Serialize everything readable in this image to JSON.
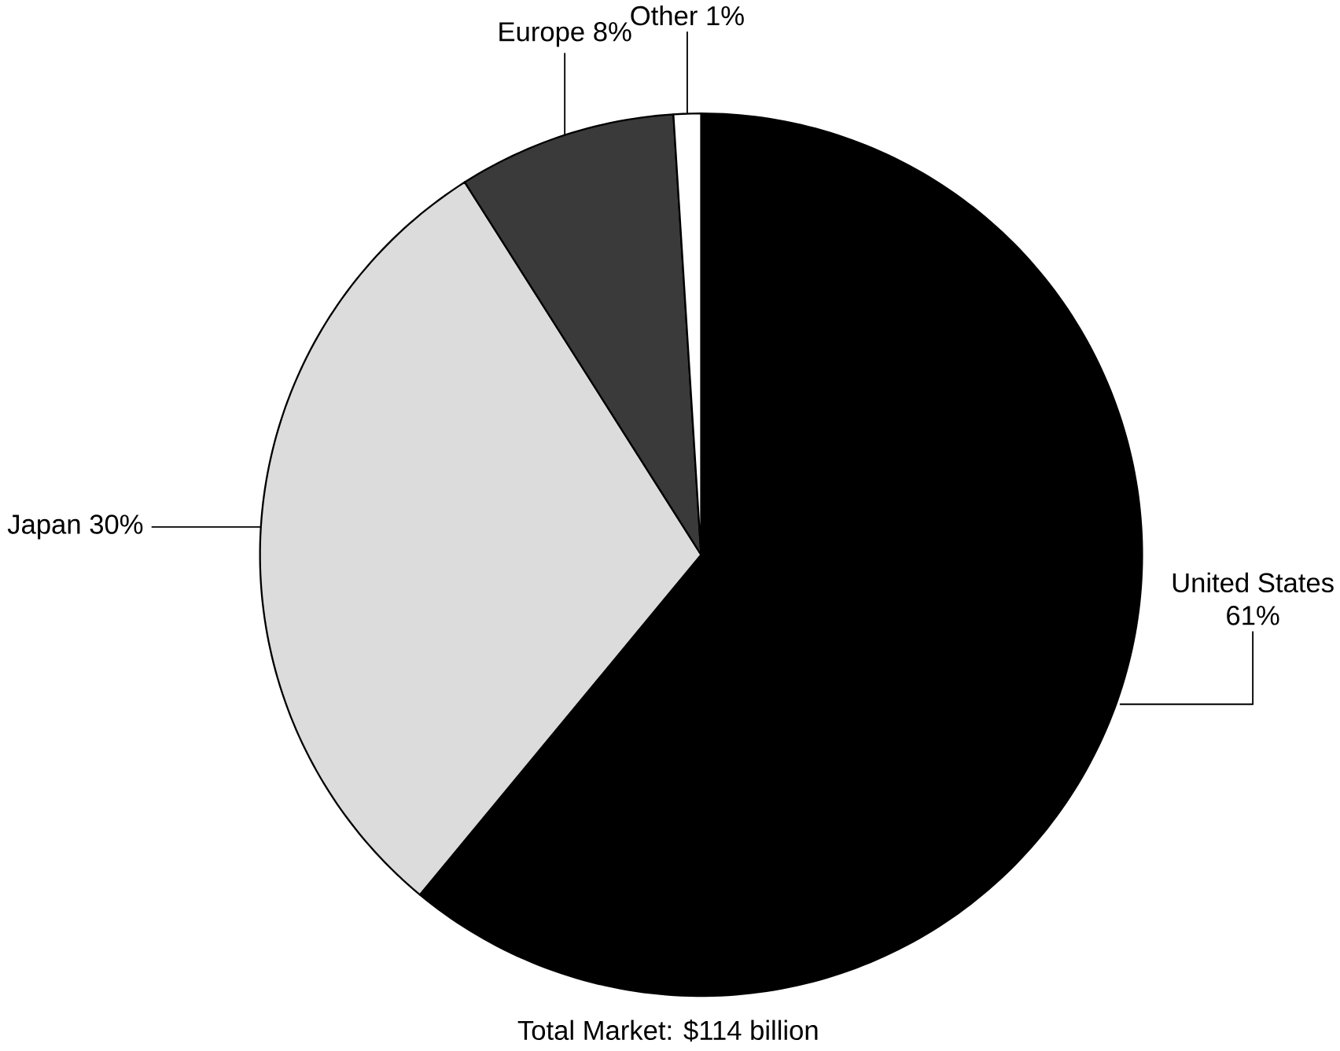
{
  "chart_data": {
    "type": "pie",
    "categories": [
      "United States",
      "Japan",
      "Europe",
      "Other"
    ],
    "values": [
      61,
      30,
      8,
      1
    ],
    "value_labels": [
      "61%",
      "30%",
      "8%",
      "1%"
    ],
    "colors": [
      "#000000",
      "#dcdcdc",
      "#3a3a3a",
      "#ffffff"
    ],
    "annotations": [
      "Total Market:  $114 billion"
    ]
  }
}
